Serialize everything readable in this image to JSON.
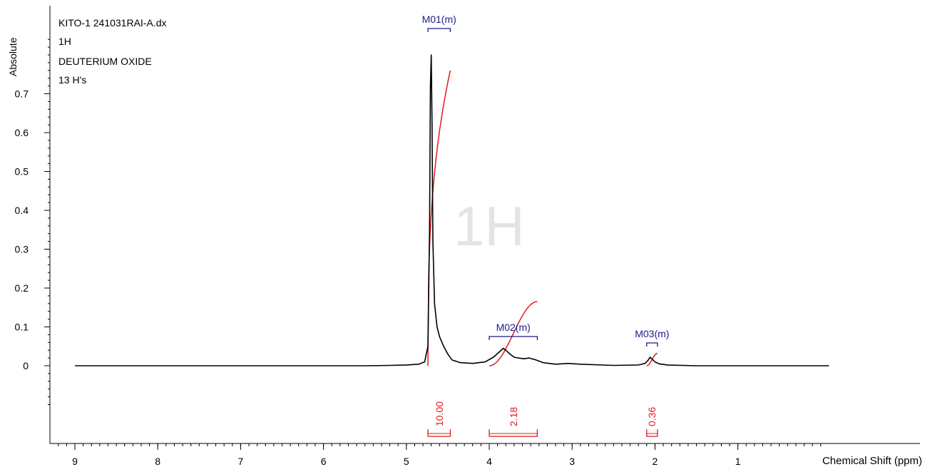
{
  "info": {
    "file": "KITO-1 241031RAI-A.dx",
    "nucleus": "1H",
    "solvent": "DEUTERIUM OXIDE",
    "protons": "13 H's"
  },
  "watermark": "1H",
  "colors": {
    "spectrum": "#000000",
    "integral": "#e8191c",
    "multiplet": "#1a1a8c",
    "watermark": "#e4e4e4"
  },
  "chart_data": {
    "type": "line",
    "xlabel": "Chemical Shift (ppm)",
    "ylabel": "Absolute",
    "xlim": [
      9.0,
      -0.0
    ],
    "ylim": [
      0.0,
      0.8
    ],
    "x_reversed": true,
    "x_ticks": [
      "9",
      "8",
      "7",
      "6",
      "5",
      "4",
      "3",
      "2",
      "1"
    ],
    "y_ticks": [
      "0",
      "0.1",
      "0.2",
      "0.3",
      "0.4",
      "0.5",
      "0.6",
      "0.7"
    ],
    "spectrum": {
      "x": [
        9.0,
        8.0,
        7.0,
        6.0,
        5.5,
        5.2,
        5.0,
        4.85,
        4.78,
        4.74,
        4.72,
        4.71,
        4.7,
        4.69,
        4.68,
        4.66,
        4.63,
        4.6,
        4.55,
        4.5,
        4.45,
        4.35,
        4.2,
        4.05,
        3.95,
        3.88,
        3.83,
        3.8,
        3.75,
        3.7,
        3.65,
        3.58,
        3.52,
        3.45,
        3.35,
        3.2,
        3.05,
        2.9,
        2.5,
        2.2,
        2.12,
        2.08,
        2.06,
        2.04,
        2.0,
        1.95,
        1.85,
        1.5,
        1.0,
        0.5,
        -0.1
      ],
      "y": [
        0.0,
        0.0,
        0.0,
        0.0,
        0.0,
        0.001,
        0.002,
        0.004,
        0.01,
        0.05,
        0.35,
        0.72,
        0.8,
        0.62,
        0.32,
        0.16,
        0.1,
        0.075,
        0.05,
        0.03,
        0.015,
        0.008,
        0.006,
        0.01,
        0.022,
        0.035,
        0.045,
        0.04,
        0.03,
        0.022,
        0.02,
        0.018,
        0.02,
        0.016,
        0.008,
        0.004,
        0.006,
        0.004,
        0.001,
        0.002,
        0.006,
        0.015,
        0.022,
        0.018,
        0.01,
        0.005,
        0.002,
        0.0,
        0.0,
        0.0,
        0.0
      ]
    },
    "multiplets": [
      {
        "label": "M01(m)",
        "from": 4.74,
        "to": 4.47,
        "integral": "10.00",
        "curve_top": 0.76
      },
      {
        "label": "M02(m)",
        "from": 4.0,
        "to": 3.42,
        "integral": "2.18",
        "curve_top": 0.165
      },
      {
        "label": "M03(m)",
        "from": 2.1,
        "to": 1.97,
        "integral": "0.36",
        "curve_top": 0.032
      }
    ]
  }
}
